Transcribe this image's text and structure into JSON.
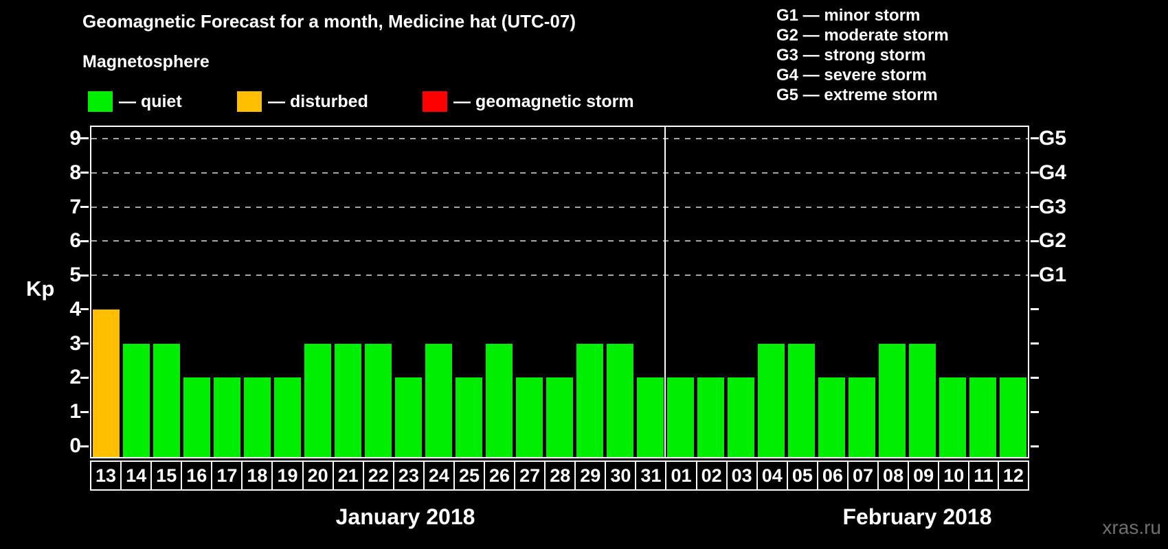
{
  "title": "Geomagnetic Forecast for a month, Medicine hat (UTC-07)",
  "subtitle": "Magnetosphere",
  "legend": {
    "items": [
      {
        "key": "quiet",
        "label": "— quiet",
        "color": "#00EE00"
      },
      {
        "key": "disturbed",
        "label": "— disturbed",
        "color": "#FFBE00"
      },
      {
        "key": "storm",
        "label": "— geomagnetic storm",
        "color": "#FF0000"
      }
    ]
  },
  "status_colors": {
    "quiet": "#00EE00",
    "disturbed": "#FFBE00",
    "storm": "#FF0000"
  },
  "g_scale_legend": [
    "G1 — minor storm",
    "G2 — moderate storm",
    "G3 — strong storm",
    "G4 — severe storm",
    "G5 — extreme storm"
  ],
  "y_axis": {
    "label": "Kp",
    "ticks": [
      0,
      1,
      2,
      3,
      4,
      5,
      6,
      7,
      8,
      9
    ],
    "grid_values": [
      5,
      6,
      7,
      8,
      9
    ]
  },
  "right_axis": {
    "labels": [
      {
        "value": 5,
        "label": "G1"
      },
      {
        "value": 6,
        "label": "G2"
      },
      {
        "value": 7,
        "label": "G3"
      },
      {
        "value": 8,
        "label": "G4"
      },
      {
        "value": 9,
        "label": "G5"
      }
    ]
  },
  "months": [
    {
      "label": "January 2018",
      "days_count": 19
    },
    {
      "label": "February 2018",
      "days_count": 12
    }
  ],
  "watermark": "xras.ru",
  "chart_data": {
    "type": "bar",
    "title": "Geomagnetic Forecast for a month, Medicine hat (UTC-07)",
    "xlabel": "",
    "ylabel": "Kp",
    "ylim": [
      0,
      9.4
    ],
    "grid": "dashed horizontal at Kp 5-9 (G1-G5)",
    "legend_position": "top-left",
    "categories": [
      "13",
      "14",
      "15",
      "16",
      "17",
      "18",
      "19",
      "20",
      "21",
      "22",
      "23",
      "24",
      "25",
      "26",
      "27",
      "28",
      "29",
      "30",
      "31",
      "01",
      "02",
      "03",
      "04",
      "05",
      "06",
      "07",
      "08",
      "09",
      "10",
      "11",
      "12"
    ],
    "series": [
      {
        "name": "Kp forecast",
        "values": [
          4,
          3,
          3,
          2,
          2,
          2,
          2,
          3,
          3,
          3,
          2,
          3,
          2,
          3,
          2,
          2,
          3,
          3,
          2,
          2,
          2,
          2,
          3,
          3,
          2,
          2,
          3,
          3,
          2,
          2,
          2
        ]
      }
    ],
    "days": [
      {
        "day": "13",
        "month": "January 2018",
        "kp": 4,
        "status": "disturbed"
      },
      {
        "day": "14",
        "month": "January 2018",
        "kp": 3,
        "status": "quiet"
      },
      {
        "day": "15",
        "month": "January 2018",
        "kp": 3,
        "status": "quiet"
      },
      {
        "day": "16",
        "month": "January 2018",
        "kp": 2,
        "status": "quiet"
      },
      {
        "day": "17",
        "month": "January 2018",
        "kp": 2,
        "status": "quiet"
      },
      {
        "day": "18",
        "month": "January 2018",
        "kp": 2,
        "status": "quiet"
      },
      {
        "day": "19",
        "month": "January 2018",
        "kp": 2,
        "status": "quiet"
      },
      {
        "day": "20",
        "month": "January 2018",
        "kp": 3,
        "status": "quiet"
      },
      {
        "day": "21",
        "month": "January 2018",
        "kp": 3,
        "status": "quiet"
      },
      {
        "day": "22",
        "month": "January 2018",
        "kp": 3,
        "status": "quiet"
      },
      {
        "day": "23",
        "month": "January 2018",
        "kp": 2,
        "status": "quiet"
      },
      {
        "day": "24",
        "month": "January 2018",
        "kp": 3,
        "status": "quiet"
      },
      {
        "day": "25",
        "month": "January 2018",
        "kp": 2,
        "status": "quiet"
      },
      {
        "day": "26",
        "month": "January 2018",
        "kp": 3,
        "status": "quiet"
      },
      {
        "day": "27",
        "month": "January 2018",
        "kp": 2,
        "status": "quiet"
      },
      {
        "day": "28",
        "month": "January 2018",
        "kp": 2,
        "status": "quiet"
      },
      {
        "day": "29",
        "month": "January 2018",
        "kp": 3,
        "status": "quiet"
      },
      {
        "day": "30",
        "month": "January 2018",
        "kp": 3,
        "status": "quiet"
      },
      {
        "day": "31",
        "month": "January 2018",
        "kp": 2,
        "status": "quiet"
      },
      {
        "day": "01",
        "month": "February 2018",
        "kp": 2,
        "status": "quiet"
      },
      {
        "day": "02",
        "month": "February 2018",
        "kp": 2,
        "status": "quiet"
      },
      {
        "day": "03",
        "month": "February 2018",
        "kp": 2,
        "status": "quiet"
      },
      {
        "day": "04",
        "month": "February 2018",
        "kp": 3,
        "status": "quiet"
      },
      {
        "day": "05",
        "month": "February 2018",
        "kp": 3,
        "status": "quiet"
      },
      {
        "day": "06",
        "month": "February 2018",
        "kp": 2,
        "status": "quiet"
      },
      {
        "day": "07",
        "month": "February 2018",
        "kp": 2,
        "status": "quiet"
      },
      {
        "day": "08",
        "month": "February 2018",
        "kp": 3,
        "status": "quiet"
      },
      {
        "day": "09",
        "month": "February 2018",
        "kp": 3,
        "status": "quiet"
      },
      {
        "day": "10",
        "month": "February 2018",
        "kp": 2,
        "status": "quiet"
      },
      {
        "day": "11",
        "month": "February 2018",
        "kp": 2,
        "status": "quiet"
      },
      {
        "day": "12",
        "month": "February 2018",
        "kp": 2,
        "status": "quiet"
      }
    ]
  }
}
